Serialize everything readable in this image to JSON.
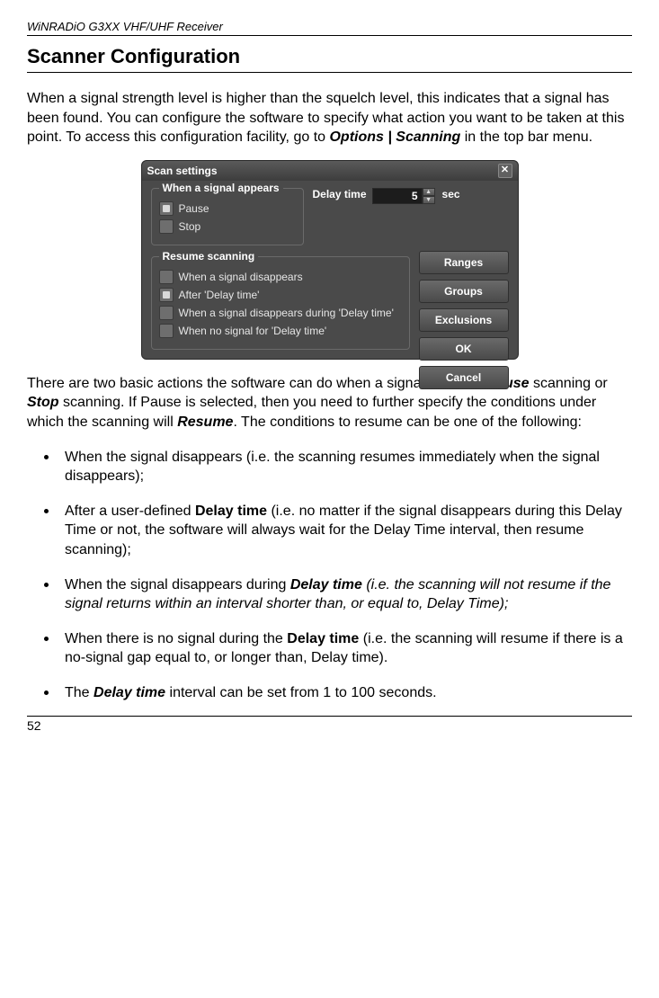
{
  "meta": {
    "running_header": "WiNRADiO G3XX VHF/UHF Receiver",
    "section_title": "Scanner Configuration",
    "page_number": "52"
  },
  "intro": {
    "p1_pre": "When a signal strength level is higher than the squelch level, this indicates that a signal has been found. You can configure the software to specify what action you want to be taken at this point. To access this configuration facility, go to ",
    "p1_em": "Options | Scanning",
    "p1_post": " in the top bar menu."
  },
  "dialog": {
    "title": "Scan settings",
    "close_glyph": "✕",
    "panel_signal_appears": {
      "title": "When a signal appears",
      "items": [
        {
          "label": "Pause",
          "checked": true
        },
        {
          "label": "Stop",
          "checked": false
        }
      ]
    },
    "delay": {
      "label": "Delay time",
      "value": "5",
      "unit": "sec",
      "spin_up": "▲",
      "spin_down": "▼"
    },
    "panel_resume": {
      "title": "Resume scanning",
      "items": [
        {
          "label": "When a signal disappears",
          "checked": false
        },
        {
          "label": "After 'Delay time'",
          "checked": true
        },
        {
          "label": "When a signal disappears during 'Delay time'",
          "checked": false
        },
        {
          "label": "When no signal for 'Delay time'",
          "checked": false
        }
      ]
    },
    "buttons": {
      "ranges": "Ranges",
      "groups": "Groups",
      "exclusions": "Exclusions",
      "ok": "OK",
      "cancel": "Cancel"
    },
    "colors": {
      "dialog_bg": "#4a4a4a",
      "panel_border": "#6a6a6a",
      "text": "#e6e6e6",
      "input_bg": "#1c1c1c"
    }
  },
  "para2": {
    "pre": "There are two basic actions the software can do when a signal is found: ",
    "pause": "Pause",
    "mid1": " scanning or ",
    "stop": "Stop",
    "mid2": " scanning. If Pause is selected, then you need to further specify the conditions under which the scanning will ",
    "resume": "Resume",
    "post": ". The conditions to resume can be one of the following:"
  },
  "bullets": {
    "b1": "When the signal disappears (i.e. the scanning resumes immediately when the signal disappears);",
    "b2_pre": "After a user-defined ",
    "b2_bold": "Delay time",
    "b2_post": " (i.e. no matter if the signal disappears during this Delay Time or not, the software will always wait for the Delay Time interval, then resume scanning);",
    "b3_pre": "When the signal disappears during ",
    "b3_bold": "Delay time",
    "b3_italic": " (i.e. the scanning will not resume if the signal returns within an interval shorter than, or equal to, Delay Time);",
    "b4_pre": "When there is no signal during the ",
    "b4_bold": "Delay time",
    "b4_post": " (i.e. the scanning will resume if there is a no-signal gap equal to, or longer than, Delay time).",
    "b5_pre": "The ",
    "b5_bold": "Delay time",
    "b5_post": " interval can be set from 1 to 100 seconds."
  }
}
